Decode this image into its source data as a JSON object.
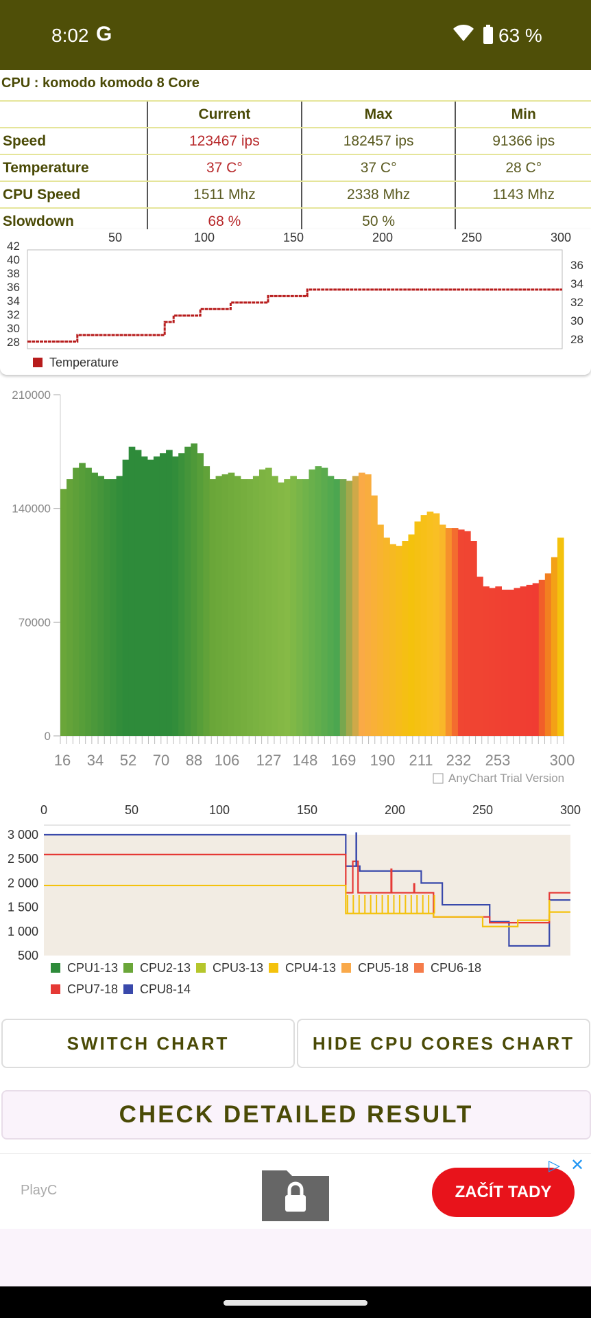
{
  "status": {
    "time": "8:02",
    "g_label": "G",
    "battery_pct": "63 %"
  },
  "cpu_title": "CPU : komodo komodo 8 Core",
  "table": {
    "headers": [
      "",
      "Current",
      "Max",
      "Min"
    ],
    "rows": [
      {
        "label": "Speed",
        "current": "123467 ips",
        "max": "182457 ips",
        "min": "91366 ips"
      },
      {
        "label": "Temperature",
        "current": "37 C°",
        "max": "37 C°",
        "min": "28 C°"
      },
      {
        "label": "CPU Speed",
        "current": "1511 Mhz",
        "max": "2338 Mhz",
        "min": "1143 Mhz"
      },
      {
        "label": "Slowdown",
        "current": "68 %",
        "max": "50 %",
        "min": ""
      }
    ]
  },
  "temp_chart": {
    "x_ticks": [
      "50",
      "100",
      "150",
      "200",
      "250",
      "300"
    ],
    "y_left": [
      "42",
      "40",
      "38",
      "36",
      "34",
      "32",
      "30",
      "28"
    ],
    "y_right": [
      "36",
      "34",
      "32",
      "30",
      "28"
    ],
    "legend": "Temperature",
    "color": "#b71c1c"
  },
  "chart_data": [
    {
      "type": "line",
      "series": [
        {
          "name": "Temperature",
          "color": "#b71c1c"
        }
      ],
      "x": [
        0,
        28,
        77,
        82,
        97,
        114,
        135,
        157,
        300
      ],
      "y": [
        28.1,
        29.1,
        31.1,
        32.1,
        33.1,
        34.1,
        35.1,
        36.1,
        36.1
      ],
      "xlim": [
        0,
        300
      ],
      "ylim": [
        27,
        42
      ]
    },
    {
      "type": "bar",
      "x_ticks": [
        "16",
        "34",
        "52",
        "70",
        "88",
        "106",
        "127",
        "148",
        "169",
        "190",
        "211",
        "232",
        "253",
        "300"
      ],
      "y_ticks": [
        "210000",
        "140000",
        "70000",
        "0"
      ],
      "ylim": [
        0,
        210000
      ],
      "values": [
        152000,
        158000,
        165000,
        168000,
        165000,
        162000,
        160000,
        158000,
        158000,
        160000,
        170000,
        178000,
        176000,
        172000,
        170000,
        172000,
        174000,
        176000,
        172000,
        174000,
        178000,
        180000,
        174000,
        166000,
        158000,
        160000,
        161000,
        162000,
        160000,
        158000,
        158000,
        160000,
        164000,
        165000,
        160000,
        156000,
        158000,
        160000,
        158000,
        158000,
        164000,
        166000,
        165000,
        160000,
        158000,
        158000,
        157000,
        160000,
        162000,
        161000,
        148000,
        130000,
        122000,
        118000,
        117000,
        120000,
        124000,
        132000,
        136000,
        138000,
        137000,
        130000,
        128000,
        128000,
        127000,
        126000,
        120000,
        98000,
        92000,
        91000,
        92000,
        90000,
        90000,
        91000,
        92000,
        93000,
        94000,
        96000,
        100000,
        110000,
        122000
      ],
      "watermark": "AnyChart Trial Version"
    },
    {
      "type": "line",
      "x_ticks": [
        "0",
        "50",
        "100",
        "150",
        "200",
        "250",
        "300"
      ],
      "y_ticks": [
        "3 000",
        "2 500",
        "2 000",
        "1 500",
        "1 000",
        "500"
      ],
      "ylim": [
        500,
        3000
      ],
      "series": [
        {
          "name": "CPU1-13",
          "color": "#2e8b3a"
        },
        {
          "name": "CPU2-13",
          "color": "#6aa639"
        },
        {
          "name": "CPU3-13",
          "color": "#b5c62c"
        },
        {
          "name": "CPU4-13",
          "color": "#f4c20d"
        },
        {
          "name": "CPU5-18",
          "color": "#f9a94a"
        },
        {
          "name": "CPU6-18",
          "color": "#f57c4a"
        },
        {
          "name": "CPU7-18",
          "color": "#e53935"
        },
        {
          "name": "CPU8-14",
          "color": "#3949ab"
        }
      ]
    }
  ],
  "buttons": {
    "switch_chart": "SWITCH CHART",
    "hide_cores": "HIDE CPU CORES CHART",
    "check_result": "CHECK DETAILED RESULT"
  },
  "ad": {
    "brand": "PlayC",
    "cta": "ZAČÍT TADY"
  }
}
